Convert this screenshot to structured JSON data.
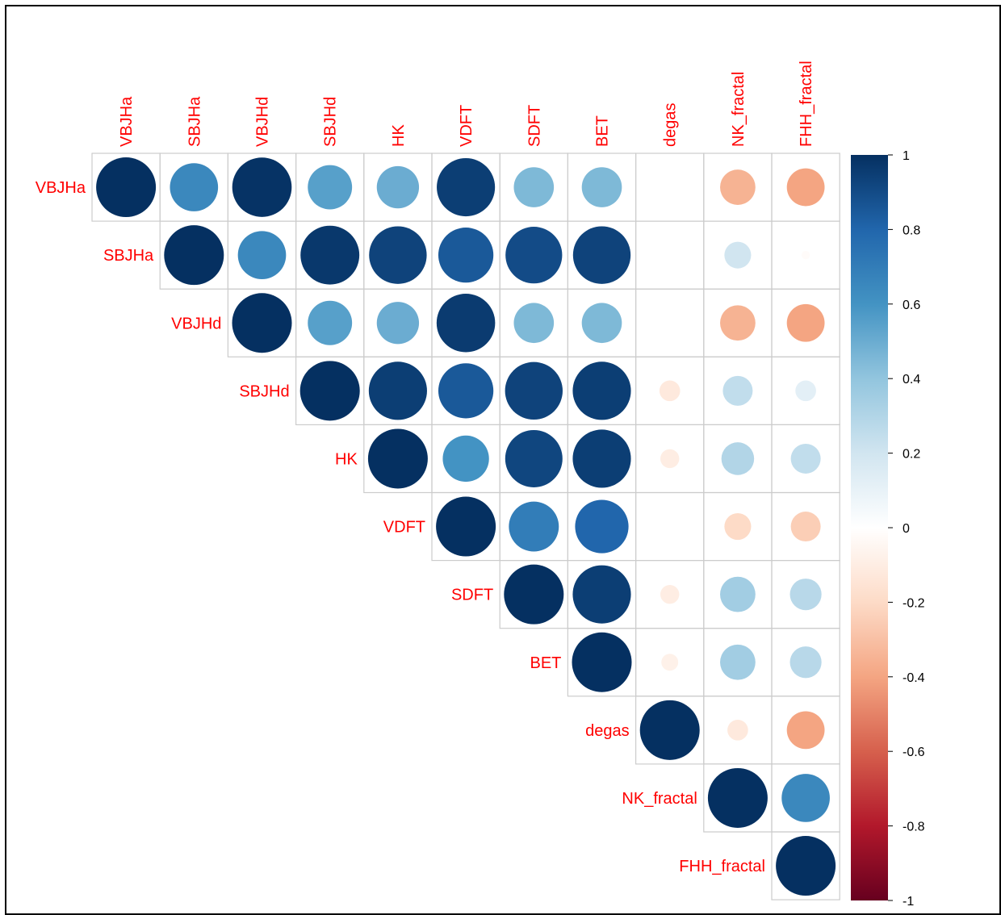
{
  "chart_data": {
    "type": "heatmap",
    "variables": [
      "VBJHa",
      "SBJHa",
      "VBJHd",
      "SBJHd",
      "HK",
      "VDFT",
      "SDFT",
      "BET",
      "degas",
      "NK_fractal",
      "FHH_fractal"
    ],
    "shape": "upper-triangle circles",
    "matrix": [
      [
        1.0,
        0.65,
        0.99,
        0.55,
        0.5,
        0.95,
        0.45,
        0.45,
        0.0,
        -0.35,
        -0.4
      ],
      [
        null,
        1.0,
        0.65,
        0.97,
        0.93,
        0.85,
        0.9,
        0.93,
        0.0,
        0.2,
        -0.02
      ],
      [
        null,
        null,
        1.0,
        0.55,
        0.5,
        0.96,
        0.45,
        0.45,
        0.0,
        -0.35,
        -0.4
      ],
      [
        null,
        null,
        null,
        1.0,
        0.95,
        0.85,
        0.93,
        0.95,
        -0.12,
        0.25,
        0.12
      ],
      [
        null,
        null,
        null,
        null,
        1.0,
        0.6,
        0.92,
        0.95,
        -0.1,
        0.3,
        0.25
      ],
      [
        null,
        null,
        null,
        null,
        null,
        1.0,
        0.7,
        0.8,
        0.0,
        -0.2,
        -0.25
      ],
      [
        null,
        null,
        null,
        null,
        null,
        null,
        1.0,
        0.95,
        -0.1,
        0.35,
        0.28
      ],
      [
        null,
        null,
        null,
        null,
        null,
        null,
        null,
        1.0,
        -0.08,
        0.35,
        0.28
      ],
      [
        null,
        null,
        null,
        null,
        null,
        null,
        null,
        null,
        1.0,
        -0.12,
        -0.4
      ],
      [
        null,
        null,
        null,
        null,
        null,
        null,
        null,
        null,
        null,
        1.0,
        0.65
      ],
      [
        null,
        null,
        null,
        null,
        null,
        null,
        null,
        null,
        null,
        null,
        1.0
      ]
    ],
    "colorbar": {
      "range": [
        -1,
        1
      ],
      "ticks": [
        "1",
        "0.8",
        "0.6",
        "0.4",
        "0.2",
        "0",
        "-0.2",
        "-0.4",
        "-0.6",
        "-0.8",
        "-1"
      ],
      "colors": {
        "neg": "#67001f",
        "mid": "#ffffff",
        "pos": "#053061"
      }
    },
    "label_color": "#ff0000",
    "grid": true
  }
}
